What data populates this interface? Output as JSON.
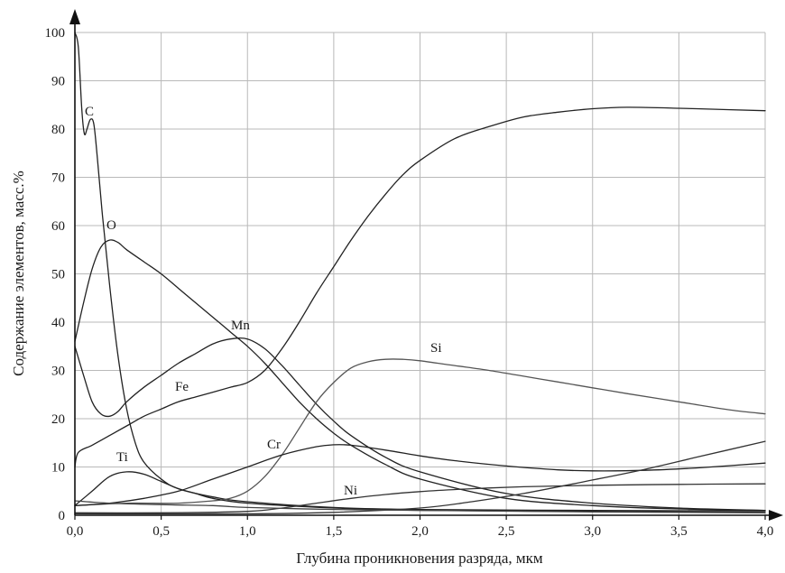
{
  "chart_data": {
    "type": "line",
    "xlabel": "Глубина проникновения разряда, мкм",
    "ylabel": "Содержание элементов, масс.%",
    "xlim": [
      0,
      4
    ],
    "ylim": [
      0,
      100
    ],
    "xticks": {
      "values": [
        0,
        0.5,
        1,
        1.5,
        2,
        2.5,
        3,
        3.5,
        4
      ],
      "labels": [
        "0,0",
        "0,5",
        "1,0",
        "1,5",
        "2,0",
        "2,5",
        "3,0",
        "3,5",
        "4,0"
      ]
    },
    "yticks": {
      "values": [
        0,
        10,
        20,
        30,
        40,
        50,
        60,
        70,
        80,
        90,
        100
      ],
      "labels": [
        "0",
        "10",
        "20",
        "30",
        "40",
        "50",
        "60",
        "70",
        "80",
        "90",
        "100"
      ]
    },
    "grid": true,
    "axis_arrows": true,
    "series": [
      {
        "name": "C",
        "color": "#222222",
        "points": [
          [
            0,
            100
          ],
          [
            0.02,
            97
          ],
          [
            0.04,
            84
          ],
          [
            0.055,
            79
          ],
          [
            0.07,
            80
          ],
          [
            0.09,
            82
          ],
          [
            0.11,
            81
          ],
          [
            0.13,
            74
          ],
          [
            0.16,
            62
          ],
          [
            0.2,
            48
          ],
          [
            0.25,
            33
          ],
          [
            0.3,
            22
          ],
          [
            0.35,
            15
          ],
          [
            0.4,
            11
          ],
          [
            0.5,
            7.5
          ],
          [
            0.6,
            5.5
          ],
          [
            0.8,
            3.8
          ],
          [
            1.0,
            2.8
          ],
          [
            1.5,
            1.6
          ],
          [
            2.0,
            1.2
          ],
          [
            3.0,
            1.0
          ],
          [
            4.0,
            0.9
          ]
        ]
      },
      {
        "name": "O",
        "color": "#222222",
        "points": [
          [
            0,
            36
          ],
          [
            0.05,
            44
          ],
          [
            0.1,
            51
          ],
          [
            0.15,
            55.5
          ],
          [
            0.2,
            57
          ],
          [
            0.25,
            56.5
          ],
          [
            0.3,
            55
          ],
          [
            0.4,
            52.5
          ],
          [
            0.5,
            50
          ],
          [
            0.6,
            47
          ],
          [
            0.7,
            44
          ],
          [
            0.8,
            41
          ],
          [
            0.9,
            38
          ],
          [
            1.0,
            35
          ],
          [
            1.1,
            31.5
          ],
          [
            1.2,
            27.5
          ],
          [
            1.3,
            23.5
          ],
          [
            1.4,
            20
          ],
          [
            1.5,
            17
          ],
          [
            1.6,
            14.5
          ],
          [
            1.8,
            10.5
          ],
          [
            2.0,
            7.5
          ],
          [
            2.5,
            3.5
          ],
          [
            3.0,
            2
          ],
          [
            3.5,
            1.3
          ],
          [
            4.0,
            1
          ]
        ]
      },
      {
        "name": "Mn",
        "color": "#222222",
        "points": [
          [
            0,
            35
          ],
          [
            0.05,
            29
          ],
          [
            0.1,
            23.5
          ],
          [
            0.15,
            21
          ],
          [
            0.2,
            20.5
          ],
          [
            0.25,
            21.5
          ],
          [
            0.3,
            23.5
          ],
          [
            0.4,
            26.5
          ],
          [
            0.5,
            29
          ],
          [
            0.6,
            31.5
          ],
          [
            0.7,
            33.5
          ],
          [
            0.8,
            35.5
          ],
          [
            0.9,
            36.5
          ],
          [
            1.0,
            36.5
          ],
          [
            1.1,
            34.5
          ],
          [
            1.2,
            31
          ],
          [
            1.3,
            27
          ],
          [
            1.4,
            23
          ],
          [
            1.5,
            19.5
          ],
          [
            1.6,
            16.5
          ],
          [
            1.8,
            12
          ],
          [
            2.0,
            9
          ],
          [
            2.5,
            4.5
          ],
          [
            3.0,
            2.5
          ],
          [
            3.5,
            1.5
          ],
          [
            4.0,
            1
          ]
        ]
      },
      {
        "name": "Fe",
        "color": "#222222",
        "points": [
          [
            0,
            10
          ],
          [
            0.02,
            13
          ],
          [
            0.1,
            14.5
          ],
          [
            0.2,
            16.5
          ],
          [
            0.3,
            18.5
          ],
          [
            0.4,
            20.5
          ],
          [
            0.5,
            22
          ],
          [
            0.6,
            23.5
          ],
          [
            0.7,
            24.5
          ],
          [
            0.8,
            25.5
          ],
          [
            0.9,
            26.5
          ],
          [
            1.0,
            27.5
          ],
          [
            1.1,
            30
          ],
          [
            1.2,
            34.5
          ],
          [
            1.3,
            40
          ],
          [
            1.4,
            46
          ],
          [
            1.5,
            51.5
          ],
          [
            1.6,
            57
          ],
          [
            1.7,
            62
          ],
          [
            1.8,
            66.5
          ],
          [
            1.9,
            70.5
          ],
          [
            2.0,
            73.5
          ],
          [
            2.2,
            78
          ],
          [
            2.4,
            80.5
          ],
          [
            2.6,
            82.5
          ],
          [
            2.8,
            83.5
          ],
          [
            3.0,
            84.2
          ],
          [
            3.2,
            84.5
          ],
          [
            3.5,
            84.3
          ],
          [
            3.8,
            84
          ],
          [
            4.0,
            83.8
          ]
        ]
      },
      {
        "name": "Si",
        "color": "#555555",
        "points": [
          [
            0,
            2
          ],
          [
            0.3,
            2.5
          ],
          [
            0.6,
            2.5
          ],
          [
            0.8,
            3
          ],
          [
            0.9,
            3.5
          ],
          [
            1.0,
            5
          ],
          [
            1.1,
            8
          ],
          [
            1.2,
            12.5
          ],
          [
            1.3,
            18
          ],
          [
            1.4,
            23.5
          ],
          [
            1.5,
            27.5
          ],
          [
            1.6,
            30.5
          ],
          [
            1.7,
            31.8
          ],
          [
            1.8,
            32.3
          ],
          [
            1.9,
            32.3
          ],
          [
            2.0,
            32
          ],
          [
            2.2,
            31
          ],
          [
            2.4,
            30
          ],
          [
            2.6,
            28.8
          ],
          [
            2.8,
            27.6
          ],
          [
            3.0,
            26.4
          ],
          [
            3.2,
            25.2
          ],
          [
            3.5,
            23.5
          ],
          [
            3.8,
            21.8
          ],
          [
            4.0,
            21
          ]
        ]
      },
      {
        "name": "Cr",
        "color": "#222222",
        "points": [
          [
            0,
            2
          ],
          [
            0.2,
            2.5
          ],
          [
            0.4,
            3.5
          ],
          [
            0.6,
            5
          ],
          [
            0.8,
            7.5
          ],
          [
            1.0,
            10
          ],
          [
            1.2,
            12.5
          ],
          [
            1.4,
            14.2
          ],
          [
            1.5,
            14.6
          ],
          [
            1.6,
            14.5
          ],
          [
            1.8,
            13.5
          ],
          [
            2.0,
            12.3
          ],
          [
            2.2,
            11.3
          ],
          [
            2.5,
            10.2
          ],
          [
            2.8,
            9.4
          ],
          [
            3.0,
            9.2
          ],
          [
            3.3,
            9.3
          ],
          [
            3.6,
            9.8
          ],
          [
            4.0,
            10.8
          ]
        ]
      },
      {
        "name": "Ti",
        "color": "#222222",
        "points": [
          [
            0,
            2
          ],
          [
            0.1,
            5
          ],
          [
            0.2,
            8
          ],
          [
            0.3,
            9
          ],
          [
            0.4,
            8.5
          ],
          [
            0.5,
            7
          ],
          [
            0.6,
            5.5
          ],
          [
            0.7,
            4.5
          ],
          [
            0.8,
            3.5
          ],
          [
            1.0,
            2.5
          ],
          [
            1.5,
            1.5
          ],
          [
            2.0,
            1
          ],
          [
            3.0,
            0.8
          ],
          [
            4.0,
            0.6
          ]
        ]
      },
      {
        "name": "Ni",
        "color": "#333333",
        "points": [
          [
            0,
            0.5
          ],
          [
            0.5,
            0.5
          ],
          [
            1.0,
            0.8
          ],
          [
            1.2,
            1.5
          ],
          [
            1.4,
            2.5
          ],
          [
            1.6,
            3.5
          ],
          [
            1.8,
            4.3
          ],
          [
            2.0,
            4.9
          ],
          [
            2.3,
            5.5
          ],
          [
            2.6,
            5.9
          ],
          [
            3.0,
            6.2
          ],
          [
            3.5,
            6.4
          ],
          [
            4.0,
            6.5
          ]
        ]
      },
      {
        "name": "",
        "color": "#333333",
        "points": [
          [
            0,
            0.3
          ],
          [
            1.0,
            0.3
          ],
          [
            1.5,
            0.6
          ],
          [
            2.0,
            1.5
          ],
          [
            2.3,
            2.8
          ],
          [
            2.6,
            4.5
          ],
          [
            3.0,
            7.3
          ],
          [
            3.3,
            9.5
          ],
          [
            3.6,
            12
          ],
          [
            4.0,
            15.3
          ]
        ]
      },
      {
        "name": "",
        "color": "#444444",
        "points": [
          [
            0,
            3
          ],
          [
            0.2,
            2.5
          ],
          [
            0.5,
            2.2
          ],
          [
            0.8,
            2
          ],
          [
            1.0,
            1.6
          ],
          [
            1.5,
            1.2
          ],
          [
            2.0,
            1
          ],
          [
            3.0,
            0.7
          ],
          [
            4.0,
            0.5
          ]
        ]
      }
    ]
  }
}
